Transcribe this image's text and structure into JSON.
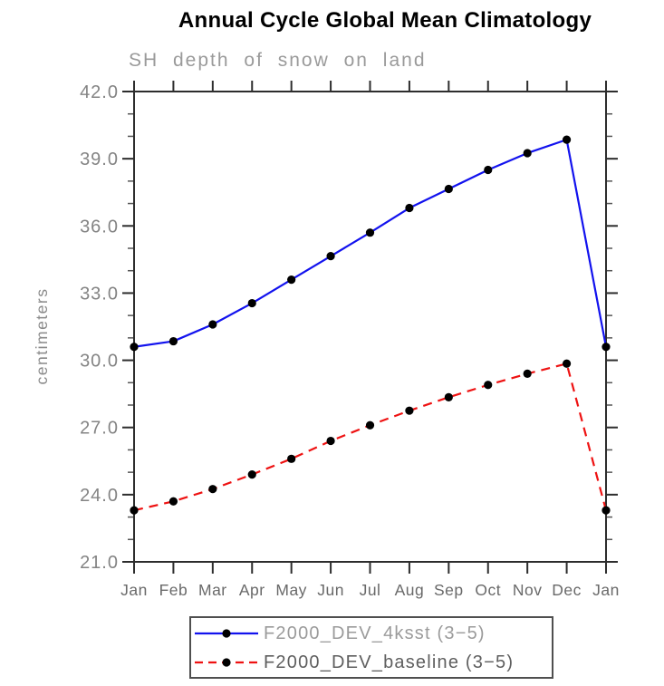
{
  "header": {
    "title": "Annual Cycle Global Mean Climatology",
    "subtitle": "SH depth of snow on land"
  },
  "chart_data": {
    "type": "line",
    "title": "Annual Cycle Global Mean Climatology",
    "subtitle": "SH depth of snow on land",
    "xlabel": "",
    "ylabel": "centimeters",
    "categories": [
      "Jan",
      "Feb",
      "Mar",
      "Apr",
      "May",
      "Jun",
      "Jul",
      "Aug",
      "Sep",
      "Oct",
      "Nov",
      "Dec",
      "Jan"
    ],
    "ylim": [
      21.0,
      42.0
    ],
    "ytick_major": 3.0,
    "ytick_minor": 1.0,
    "ytick_labels": [
      "42.0",
      "39.0",
      "36.0",
      "33.0",
      "30.0",
      "27.0",
      "24.0",
      "21.0"
    ],
    "grid": false,
    "legend_position": "bottom",
    "series": [
      {
        "name": "F2000_DEV_4ksst (3−5)",
        "color": "#1212ee",
        "style": "solid",
        "marker": "filled-circle",
        "marker_color": "#000000",
        "values": [
          30.6,
          30.85,
          31.6,
          32.55,
          33.6,
          34.65,
          35.7,
          36.8,
          37.65,
          38.5,
          39.25,
          39.85,
          30.6
        ]
      },
      {
        "name": "F2000_DEV_baseline (3−5)",
        "color": "#ee1212",
        "style": "dashed",
        "marker": "filled-circle",
        "marker_color": "#000000",
        "values": [
          23.3,
          23.7,
          24.25,
          24.9,
          25.6,
          26.4,
          27.1,
          27.75,
          28.35,
          28.9,
          29.4,
          29.85,
          23.3
        ]
      }
    ]
  },
  "legend": {
    "label_colors": [
      "#9b9b9b",
      "#5f5f5f"
    ]
  },
  "axis_colors": {
    "frame": "#2d2d2d",
    "minor_tick": "#565656",
    "y_tick_label": "#848484",
    "x_tick_label": "#696969",
    "y_axis_label": "#8a8a8a"
  }
}
